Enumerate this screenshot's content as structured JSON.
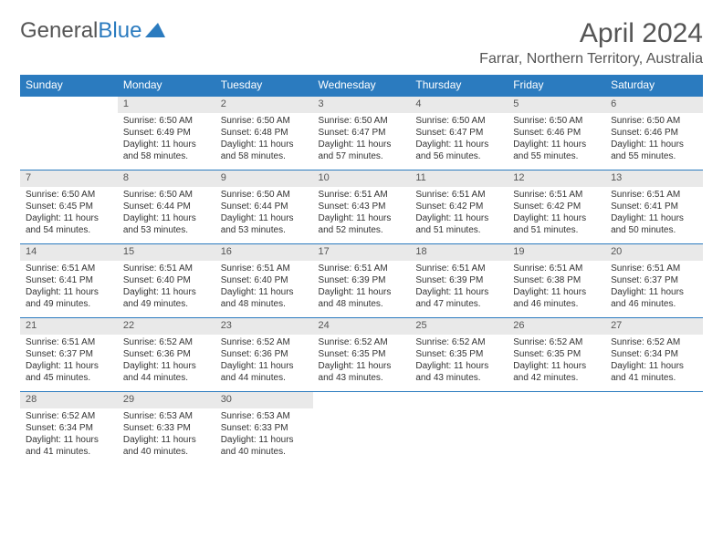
{
  "logo": {
    "text1": "General",
    "text2": "Blue",
    "text_color": "#555555",
    "accent_color": "#2b7bbf"
  },
  "header": {
    "title": "April 2024",
    "location": "Farrar, Northern Territory, Australia"
  },
  "styling": {
    "header_bg": "#2b7bbf",
    "header_fg": "#ffffff",
    "daynum_bg": "#e9e9e9",
    "border_color": "#2b7bbf",
    "body_bg": "#ffffff",
    "text_color": "#333333",
    "title_fontsize": 30,
    "location_fontsize": 16,
    "dayheader_fontsize": 12,
    "daynum_fontsize": 11,
    "cell_fontsize": 10
  },
  "days": [
    "Sunday",
    "Monday",
    "Tuesday",
    "Wednesday",
    "Thursday",
    "Friday",
    "Saturday"
  ],
  "weeks": [
    [
      null,
      {
        "n": "1",
        "sr": "Sunrise: 6:50 AM",
        "ss": "Sunset: 6:49 PM",
        "d1": "Daylight: 11 hours",
        "d2": "and 58 minutes."
      },
      {
        "n": "2",
        "sr": "Sunrise: 6:50 AM",
        "ss": "Sunset: 6:48 PM",
        "d1": "Daylight: 11 hours",
        "d2": "and 58 minutes."
      },
      {
        "n": "3",
        "sr": "Sunrise: 6:50 AM",
        "ss": "Sunset: 6:47 PM",
        "d1": "Daylight: 11 hours",
        "d2": "and 57 minutes."
      },
      {
        "n": "4",
        "sr": "Sunrise: 6:50 AM",
        "ss": "Sunset: 6:47 PM",
        "d1": "Daylight: 11 hours",
        "d2": "and 56 minutes."
      },
      {
        "n": "5",
        "sr": "Sunrise: 6:50 AM",
        "ss": "Sunset: 6:46 PM",
        "d1": "Daylight: 11 hours",
        "d2": "and 55 minutes."
      },
      {
        "n": "6",
        "sr": "Sunrise: 6:50 AM",
        "ss": "Sunset: 6:46 PM",
        "d1": "Daylight: 11 hours",
        "d2": "and 55 minutes."
      }
    ],
    [
      {
        "n": "7",
        "sr": "Sunrise: 6:50 AM",
        "ss": "Sunset: 6:45 PM",
        "d1": "Daylight: 11 hours",
        "d2": "and 54 minutes."
      },
      {
        "n": "8",
        "sr": "Sunrise: 6:50 AM",
        "ss": "Sunset: 6:44 PM",
        "d1": "Daylight: 11 hours",
        "d2": "and 53 minutes."
      },
      {
        "n": "9",
        "sr": "Sunrise: 6:50 AM",
        "ss": "Sunset: 6:44 PM",
        "d1": "Daylight: 11 hours",
        "d2": "and 53 minutes."
      },
      {
        "n": "10",
        "sr": "Sunrise: 6:51 AM",
        "ss": "Sunset: 6:43 PM",
        "d1": "Daylight: 11 hours",
        "d2": "and 52 minutes."
      },
      {
        "n": "11",
        "sr": "Sunrise: 6:51 AM",
        "ss": "Sunset: 6:42 PM",
        "d1": "Daylight: 11 hours",
        "d2": "and 51 minutes."
      },
      {
        "n": "12",
        "sr": "Sunrise: 6:51 AM",
        "ss": "Sunset: 6:42 PM",
        "d1": "Daylight: 11 hours",
        "d2": "and 51 minutes."
      },
      {
        "n": "13",
        "sr": "Sunrise: 6:51 AM",
        "ss": "Sunset: 6:41 PM",
        "d1": "Daylight: 11 hours",
        "d2": "and 50 minutes."
      }
    ],
    [
      {
        "n": "14",
        "sr": "Sunrise: 6:51 AM",
        "ss": "Sunset: 6:41 PM",
        "d1": "Daylight: 11 hours",
        "d2": "and 49 minutes."
      },
      {
        "n": "15",
        "sr": "Sunrise: 6:51 AM",
        "ss": "Sunset: 6:40 PM",
        "d1": "Daylight: 11 hours",
        "d2": "and 49 minutes."
      },
      {
        "n": "16",
        "sr": "Sunrise: 6:51 AM",
        "ss": "Sunset: 6:40 PM",
        "d1": "Daylight: 11 hours",
        "d2": "and 48 minutes."
      },
      {
        "n": "17",
        "sr": "Sunrise: 6:51 AM",
        "ss": "Sunset: 6:39 PM",
        "d1": "Daylight: 11 hours",
        "d2": "and 48 minutes."
      },
      {
        "n": "18",
        "sr": "Sunrise: 6:51 AM",
        "ss": "Sunset: 6:39 PM",
        "d1": "Daylight: 11 hours",
        "d2": "and 47 minutes."
      },
      {
        "n": "19",
        "sr": "Sunrise: 6:51 AM",
        "ss": "Sunset: 6:38 PM",
        "d1": "Daylight: 11 hours",
        "d2": "and 46 minutes."
      },
      {
        "n": "20",
        "sr": "Sunrise: 6:51 AM",
        "ss": "Sunset: 6:37 PM",
        "d1": "Daylight: 11 hours",
        "d2": "and 46 minutes."
      }
    ],
    [
      {
        "n": "21",
        "sr": "Sunrise: 6:51 AM",
        "ss": "Sunset: 6:37 PM",
        "d1": "Daylight: 11 hours",
        "d2": "and 45 minutes."
      },
      {
        "n": "22",
        "sr": "Sunrise: 6:52 AM",
        "ss": "Sunset: 6:36 PM",
        "d1": "Daylight: 11 hours",
        "d2": "and 44 minutes."
      },
      {
        "n": "23",
        "sr": "Sunrise: 6:52 AM",
        "ss": "Sunset: 6:36 PM",
        "d1": "Daylight: 11 hours",
        "d2": "and 44 minutes."
      },
      {
        "n": "24",
        "sr": "Sunrise: 6:52 AM",
        "ss": "Sunset: 6:35 PM",
        "d1": "Daylight: 11 hours",
        "d2": "and 43 minutes."
      },
      {
        "n": "25",
        "sr": "Sunrise: 6:52 AM",
        "ss": "Sunset: 6:35 PM",
        "d1": "Daylight: 11 hours",
        "d2": "and 43 minutes."
      },
      {
        "n": "26",
        "sr": "Sunrise: 6:52 AM",
        "ss": "Sunset: 6:35 PM",
        "d1": "Daylight: 11 hours",
        "d2": "and 42 minutes."
      },
      {
        "n": "27",
        "sr": "Sunrise: 6:52 AM",
        "ss": "Sunset: 6:34 PM",
        "d1": "Daylight: 11 hours",
        "d2": "and 41 minutes."
      }
    ],
    [
      {
        "n": "28",
        "sr": "Sunrise: 6:52 AM",
        "ss": "Sunset: 6:34 PM",
        "d1": "Daylight: 11 hours",
        "d2": "and 41 minutes."
      },
      {
        "n": "29",
        "sr": "Sunrise: 6:53 AM",
        "ss": "Sunset: 6:33 PM",
        "d1": "Daylight: 11 hours",
        "d2": "and 40 minutes."
      },
      {
        "n": "30",
        "sr": "Sunrise: 6:53 AM",
        "ss": "Sunset: 6:33 PM",
        "d1": "Daylight: 11 hours",
        "d2": "and 40 minutes."
      },
      null,
      null,
      null,
      null
    ]
  ]
}
